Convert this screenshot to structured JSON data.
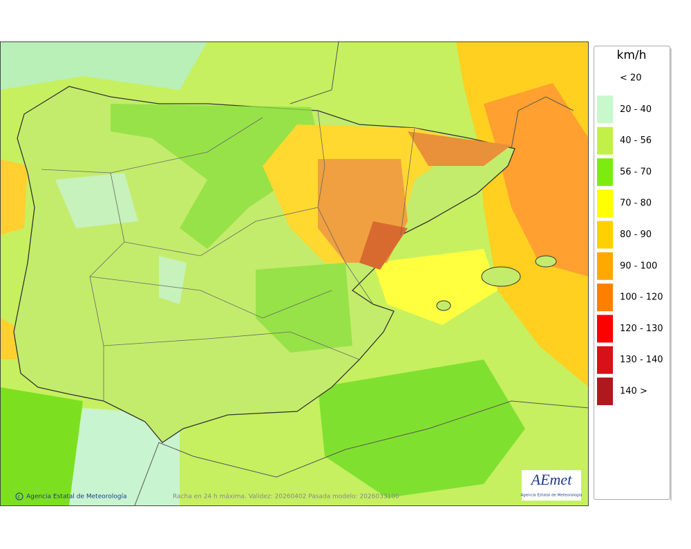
{
  "legend": {
    "title": "km/h",
    "items": [
      {
        "label": "< 20"
      },
      {
        "label": "20 - 40",
        "color": "#c8f8cc"
      },
      {
        "label": "40 - 56",
        "color": "#c2f048"
      },
      {
        "label": "56 - 70",
        "color": "#7cec10"
      },
      {
        "label": "70 - 80",
        "color": "#ffff00"
      },
      {
        "label": "80 - 90",
        "color": "#ffd000"
      },
      {
        "label": "90 - 100",
        "color": "#ffa800"
      },
      {
        "label": "100 - 120",
        "color": "#ff8000"
      },
      {
        "label": "120 - 130",
        "color": "#ff0000"
      },
      {
        "label": "130 - 140",
        "color": "#d81018"
      },
      {
        "label": "140 >",
        "color": "#b01820"
      }
    ]
  },
  "footer": {
    "credit": "Agencia Estatal de Meteorología",
    "caption": "Racha en 24 h máxima. Validez: 20260402 Pasada modelo: 2026033100"
  },
  "logo": {
    "name": "AEmet",
    "subtitle": "Agencia Estatal de Meteorología"
  }
}
